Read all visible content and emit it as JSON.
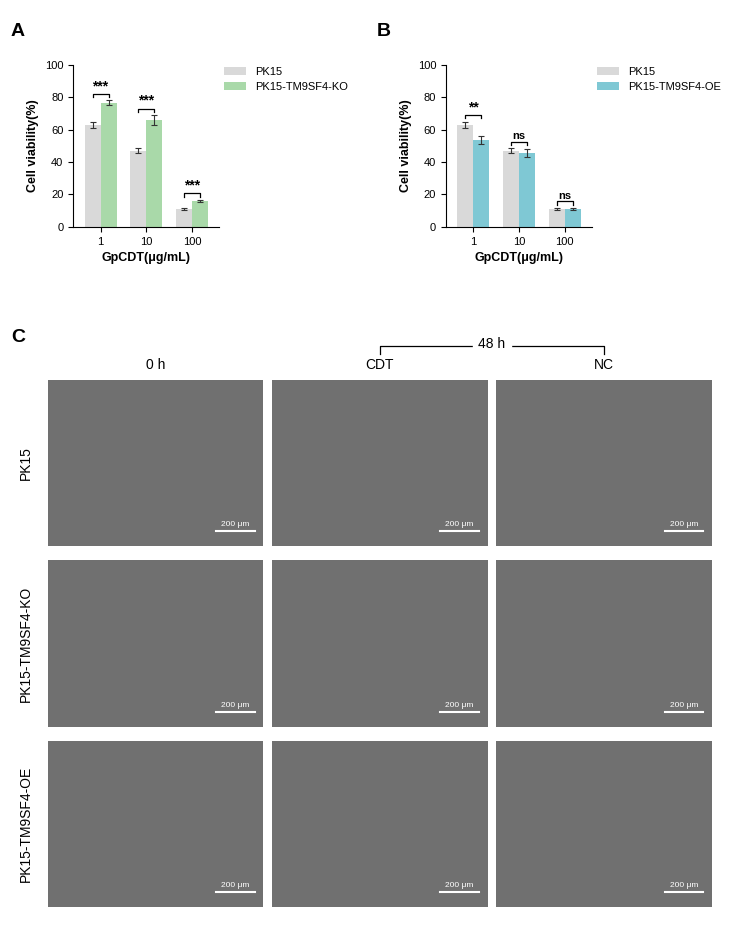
{
  "chart_data": [
    {
      "type": "bar",
      "panel_label": "A",
      "x_label": "GpCDT(μg/mL)",
      "y_label": "Cell viability(%)",
      "categories": [
        "1",
        "10",
        "100"
      ],
      "series": [
        {
          "name": "PK15",
          "color": "#d9d9d9",
          "values": [
            63,
            47,
            11
          ],
          "errors": [
            2,
            1.5,
            0.5
          ]
        },
        {
          "name": "PK15-TM9SF4-KO",
          "color": "#a9d9a9",
          "values": [
            76.5,
            66,
            16
          ],
          "errors": [
            1.5,
            3,
            0.7
          ]
        }
      ],
      "significance": [
        "***",
        "***",
        "***"
      ],
      "ylim": [
        0,
        100
      ],
      "yticks": [
        0,
        20,
        40,
        60,
        80,
        100
      ],
      "legend": "upper right"
    },
    {
      "type": "bar",
      "panel_label": "B",
      "x_label": "GpCDT(μg/mL)",
      "y_label": "Cell viability(%)",
      "categories": [
        "1",
        "10",
        "100"
      ],
      "series": [
        {
          "name": "PK15",
          "color": "#d9d9d9",
          "values": [
            63,
            47,
            11
          ],
          "errors": [
            2,
            1.5,
            0.5
          ]
        },
        {
          "name": "PK15-TM9SF4-OE",
          "color": "#7fc8d4",
          "values": [
            53.5,
            45.5,
            11
          ],
          "errors": [
            2.5,
            2.5,
            0.7
          ]
        }
      ],
      "significance": [
        "**",
        "ns",
        "ns"
      ],
      "ylim": [
        0,
        100
      ],
      "yticks": [
        0,
        20,
        40,
        60,
        80,
        100
      ],
      "legend": "upper right"
    }
  ],
  "image_panel": {
    "panel_label": "C",
    "time_header": "48 h",
    "columns": [
      "0 h",
      "CDT",
      "NC"
    ],
    "rows": [
      "PK15",
      "PK15-TM9SF4-KO",
      "PK15-TM9SF4-OE"
    ],
    "scale_bar": "200 μm"
  }
}
